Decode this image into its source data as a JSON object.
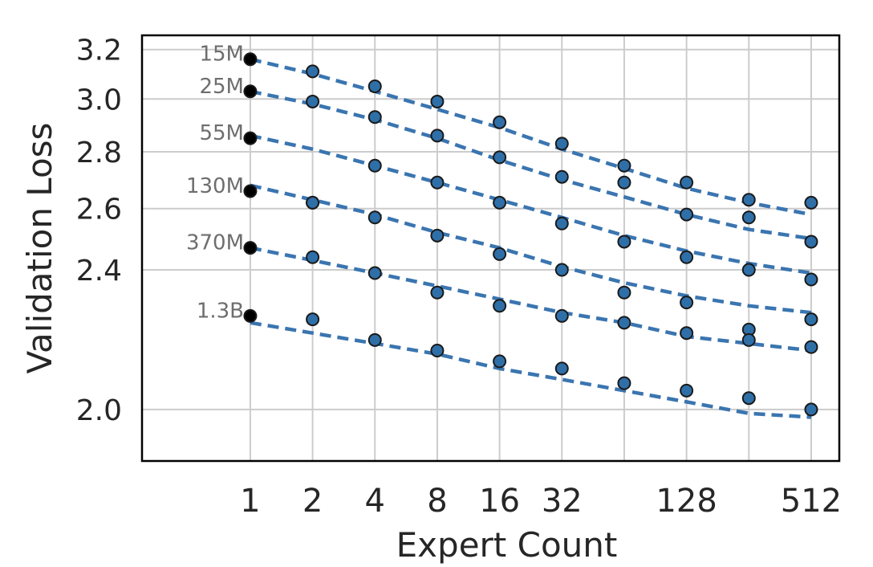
{
  "chart_data": {
    "type": "scatter",
    "xlabel": "Expert Count",
    "ylabel": "Validation Loss",
    "xscale": "log2",
    "yscale": "log",
    "xlim": [
      0.3,
      700
    ],
    "ylim": [
      1.87,
      3.26
    ],
    "grid": true,
    "x_ticks": [
      1,
      2,
      4,
      8,
      16,
      32,
      64,
      128,
      256,
      512
    ],
    "x_tick_labels": [
      "1",
      "2",
      "4",
      "8",
      "16",
      "32",
      "",
      "128",
      "",
      "512"
    ],
    "y_ticks": [
      2.0,
      2.4,
      2.6,
      2.8,
      3.0,
      3.2
    ],
    "y_tick_labels": [
      "2.0",
      "2.4",
      "2.6",
      "2.8",
      "3.0",
      "3.2"
    ],
    "marker_color": "#2f6fa8",
    "baseline_color": "#000000",
    "fit_color": "#3a75b0",
    "series": [
      {
        "name": "15M",
        "x": [
          1,
          2,
          4,
          8,
          16,
          32,
          64,
          128,
          256,
          512
        ],
        "y": [
          3.16,
          3.11,
          3.05,
          2.99,
          2.91,
          2.83,
          2.75,
          2.69,
          2.63,
          2.62
        ],
        "fit": [
          3.16,
          3.1,
          3.03,
          2.96,
          2.89,
          2.81,
          2.74,
          2.67,
          2.62,
          2.58
        ]
      },
      {
        "name": "25M",
        "x": [
          1,
          2,
          4,
          8,
          16,
          32,
          64,
          128,
          256,
          512
        ],
        "y": [
          3.03,
          2.99,
          2.93,
          2.86,
          2.78,
          2.71,
          2.69,
          2.58,
          2.57,
          2.49
        ],
        "fit": [
          3.03,
          2.98,
          2.92,
          2.85,
          2.77,
          2.7,
          2.64,
          2.58,
          2.53,
          2.5
        ]
      },
      {
        "name": "55M",
        "x": [
          1,
          2,
          4,
          8,
          16,
          32,
          64,
          128,
          256,
          512
        ],
        "y": [
          2.85,
          2.62,
          2.75,
          2.69,
          2.62,
          2.55,
          2.49,
          2.44,
          2.4,
          2.37
        ],
        "fit": [
          2.86,
          2.81,
          2.75,
          2.69,
          2.63,
          2.57,
          2.51,
          2.46,
          2.42,
          2.39
        ]
      },
      {
        "name": "130M",
        "x": [
          1,
          2,
          4,
          8,
          16,
          32,
          64,
          128,
          256,
          512
        ],
        "y": [
          2.66,
          2.62,
          2.57,
          2.51,
          2.45,
          2.4,
          2.33,
          2.3,
          2.22,
          2.25
        ],
        "fit": [
          2.68,
          2.63,
          2.58,
          2.52,
          2.47,
          2.41,
          2.36,
          2.32,
          2.29,
          2.27
        ]
      },
      {
        "name": "370M",
        "x": [
          1,
          2,
          4,
          8,
          16,
          32,
          64,
          128,
          256,
          512
        ],
        "y": [
          2.47,
          2.44,
          2.39,
          2.33,
          2.29,
          2.26,
          2.24,
          2.21,
          2.19,
          2.17
        ],
        "fit": [
          2.47,
          2.43,
          2.39,
          2.35,
          2.31,
          2.27,
          2.24,
          2.2,
          2.18,
          2.16
        ]
      },
      {
        "name": "1.3B",
        "x": [
          1,
          2,
          4,
          8,
          16,
          32,
          64,
          128,
          256,
          512
        ],
        "y": [
          2.26,
          2.25,
          2.19,
          2.16,
          2.13,
          2.11,
          2.07,
          2.05,
          2.03,
          2.0
        ],
        "fit": [
          2.24,
          2.21,
          2.18,
          2.15,
          2.11,
          2.08,
          2.05,
          2.02,
          1.99,
          1.98
        ]
      }
    ]
  }
}
